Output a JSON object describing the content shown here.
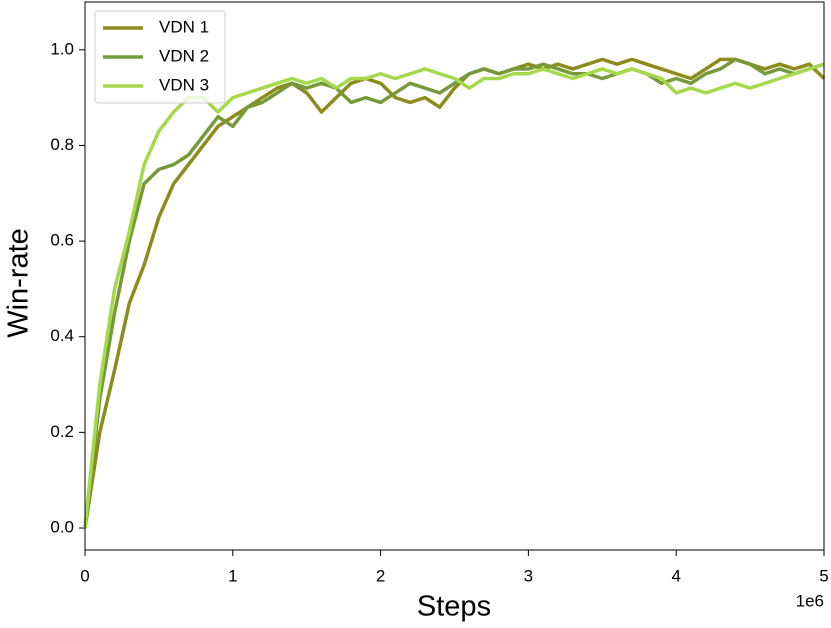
{
  "chart_data": {
    "type": "line",
    "xlabel": "Steps",
    "ylabel": "Win-rate",
    "x_offset_label": "1e6",
    "x": [
      0,
      0.1,
      0.2,
      0.3,
      0.4,
      0.5,
      0.6,
      0.7,
      0.8,
      0.9,
      1.0,
      1.1,
      1.2,
      1.3,
      1.4,
      1.5,
      1.6,
      1.7,
      1.8,
      1.9,
      2.0,
      2.1,
      2.2,
      2.3,
      2.4,
      2.5,
      2.6,
      2.7,
      2.8,
      2.9,
      3.0,
      3.1,
      3.2,
      3.3,
      3.4,
      3.5,
      3.6,
      3.7,
      3.8,
      3.9,
      4.0,
      4.1,
      4.2,
      4.3,
      4.4,
      4.5,
      4.6,
      4.7,
      4.8,
      4.9,
      5.0
    ],
    "series": [
      {
        "name": "VDN 1",
        "color": "#8c8c1c",
        "values": [
          0,
          0.2,
          0.33,
          0.47,
          0.55,
          0.65,
          0.72,
          0.76,
          0.8,
          0.84,
          0.86,
          0.88,
          0.9,
          0.92,
          0.93,
          0.91,
          0.87,
          0.9,
          0.93,
          0.94,
          0.93,
          0.9,
          0.89,
          0.9,
          0.88,
          0.92,
          0.95,
          0.96,
          0.95,
          0.96,
          0.97,
          0.96,
          0.97,
          0.96,
          0.97,
          0.98,
          0.97,
          0.98,
          0.97,
          0.96,
          0.95,
          0.94,
          0.96,
          0.98,
          0.98,
          0.97,
          0.96,
          0.97,
          0.96,
          0.97,
          0.94
        ]
      },
      {
        "name": "VDN 2",
        "color": "#76993a",
        "values": [
          0,
          0.27,
          0.45,
          0.6,
          0.72,
          0.75,
          0.76,
          0.78,
          0.82,
          0.86,
          0.84,
          0.88,
          0.89,
          0.91,
          0.93,
          0.92,
          0.93,
          0.92,
          0.89,
          0.9,
          0.89,
          0.91,
          0.93,
          0.92,
          0.91,
          0.93,
          0.95,
          0.96,
          0.95,
          0.96,
          0.96,
          0.97,
          0.96,
          0.95,
          0.95,
          0.94,
          0.95,
          0.96,
          0.95,
          0.93,
          0.94,
          0.93,
          0.95,
          0.96,
          0.98,
          0.97,
          0.95,
          0.96,
          0.95,
          0.96,
          0.97
        ]
      },
      {
        "name": "VDN 3",
        "color": "#a3d94a",
        "values": [
          0,
          0.3,
          0.5,
          0.62,
          0.76,
          0.83,
          0.87,
          0.9,
          0.9,
          0.87,
          0.9,
          0.91,
          0.92,
          0.93,
          0.94,
          0.93,
          0.94,
          0.92,
          0.94,
          0.94,
          0.95,
          0.94,
          0.95,
          0.96,
          0.95,
          0.94,
          0.92,
          0.94,
          0.94,
          0.95,
          0.95,
          0.96,
          0.95,
          0.94,
          0.95,
          0.96,
          0.95,
          0.96,
          0.95,
          0.94,
          0.91,
          0.92,
          0.91,
          0.92,
          0.93,
          0.92,
          0.93,
          0.94,
          0.95,
          0.96,
          0.97
        ]
      }
    ],
    "xlim": [
      0,
      5
    ],
    "ylim": [
      -0.046,
      1.1
    ],
    "xticks": [
      0,
      1,
      2,
      3,
      4,
      5
    ],
    "yticks": [
      {
        "value": 0,
        "label": "0.0"
      },
      0.2,
      0.4,
      0.6,
      0.8,
      {
        "value": 1,
        "label": "1.0"
      }
    ],
    "legend": "upper left",
    "grid": false
  }
}
